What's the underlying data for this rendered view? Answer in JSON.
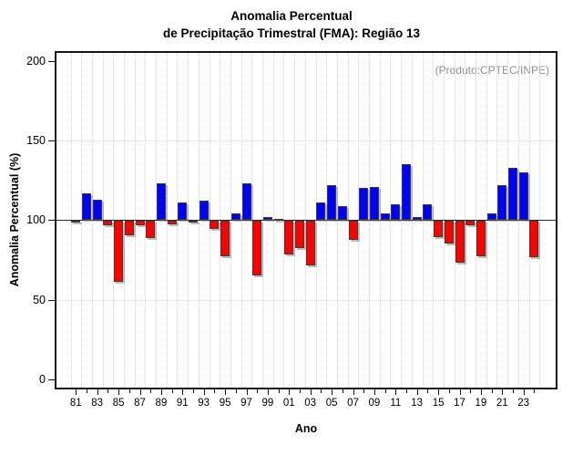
{
  "chart_data": {
    "type": "bar",
    "title_line1": "Anomalia Percentual",
    "title_line2": "de Precipitação Trimestral (FMA): Região 13",
    "annotation": "(Produto:CPTEC/INPE)",
    "ylabel": "Anomalia Percentual (%)",
    "xlabel": "Ano",
    "baseline": 100,
    "ylim": [
      -5,
      206
    ],
    "yticks": [
      0,
      50,
      100,
      150,
      200
    ],
    "grid_y_dotted": [
      50,
      150
    ],
    "grid": "dotted",
    "legend_position": "none",
    "categories": [
      "81",
      "82",
      "83",
      "84",
      "85",
      "86",
      "87",
      "88",
      "89",
      "90",
      "91",
      "92",
      "93",
      "94",
      "95",
      "96",
      "97",
      "98",
      "99",
      "00",
      "01",
      "02",
      "03",
      "04",
      "05",
      "06",
      "07",
      "08",
      "09",
      "10",
      "11",
      "12",
      "13",
      "14",
      "15",
      "16",
      "17",
      "18",
      "19",
      "20",
      "21",
      "22",
      "23",
      "24"
    ],
    "values": [
      99.5,
      117,
      113,
      97,
      62,
      91,
      97,
      89,
      123,
      98,
      111,
      99,
      112,
      95,
      78,
      104,
      123,
      66,
      102,
      101,
      79,
      83,
      72,
      111,
      122,
      109,
      88,
      120,
      121,
      104,
      110,
      135,
      102,
      110,
      90,
      86,
      74,
      97,
      78,
      104,
      122,
      133,
      130,
      77
    ],
    "xtick_labels": [
      "81",
      "83",
      "85",
      "87",
      "89",
      "91",
      "93",
      "95",
      "97",
      "99",
      "01",
      "03",
      "05",
      "07",
      "09",
      "11",
      "13",
      "15",
      "17",
      "19",
      "21",
      "23"
    ],
    "colors": {
      "above_baseline": "#0000ff",
      "below_baseline": "#ff0000",
      "bar_outline": "#3c3c3c",
      "gridline": "#d6d6d6",
      "baseline_line": "#2a2a2a",
      "frame": "#141414",
      "annotation_text": "#8f8f8f"
    }
  }
}
